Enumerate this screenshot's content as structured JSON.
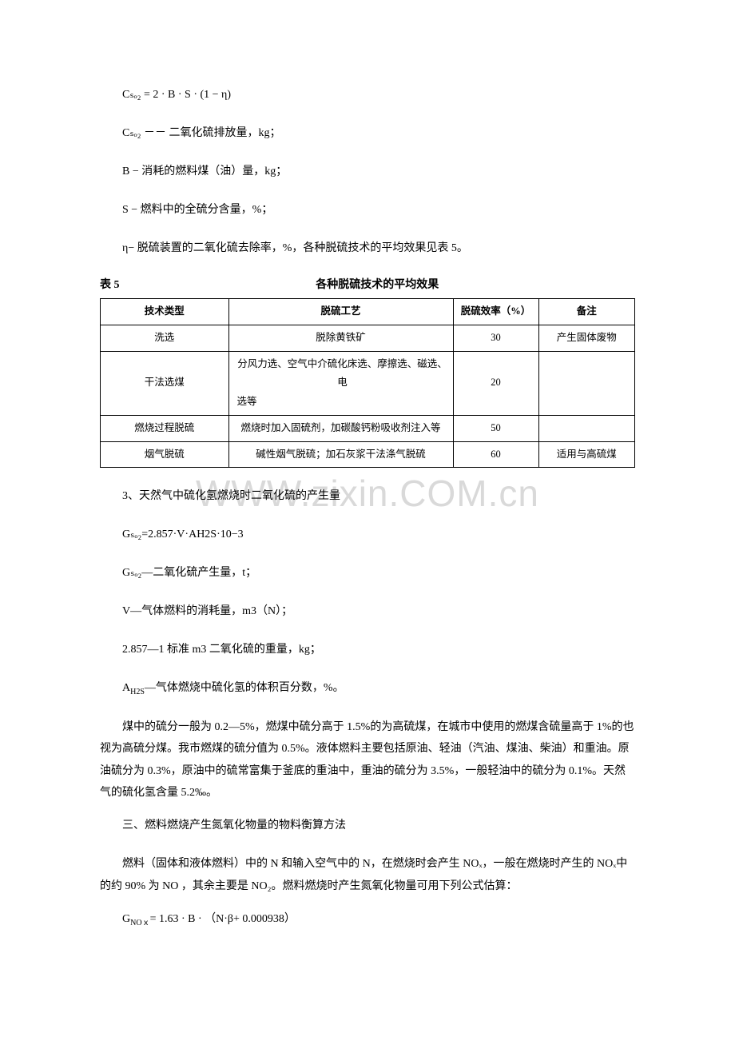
{
  "watermark": "WWW.zixin.COM.cn",
  "formula1": "Cₛₒ₂ = 2 · B · S · (1 − η)",
  "defs": {
    "cso2": "Cₛₒ₂  －－ 二氧化硫排放量，kg；",
    "b": "B − 消耗的燃料煤（油）量，kg；",
    "s": "S − 燃料中的全硫分含量，%；",
    "eta": "η− 脱硫装置的二氧化硫去除率，%，各种脱硫技术的平均效果见表 5。"
  },
  "table5": {
    "label": "表 5",
    "title": "各种脱硫技术的平均效果",
    "headers": [
      "技术类型",
      "脱硫工艺",
      "脱硫效率（%）",
      "备注"
    ],
    "rows": [
      {
        "type": "洗选",
        "process": "脱除黄铁矿",
        "eff": "30",
        "note": "产生固体废物"
      },
      {
        "type": "干法选煤",
        "process_top": "分风力选、空气中介硫化床选、摩擦选、磁选、电",
        "process_bottom": "选等",
        "eff": "20",
        "note": ""
      },
      {
        "type": "燃烧过程脱硫",
        "process": "燃烧时加入固硫剂，加碳酸钙粉吸收剂注入等",
        "eff": "50",
        "note": ""
      },
      {
        "type": "烟气脱硫",
        "process": "碱性烟气脱硫；加石灰浆干法涤气脱硫",
        "eff": "60",
        "note": "适用与高硫煤"
      }
    ]
  },
  "sec3": {
    "title": "3、天然气中硫化氢燃烧时二氧化硫的产生量",
    "eq": "Gₛₒ₂=2.857·V·AH2S·10−3",
    "g": "Gₛₒ₂—二氧化硫产生量，t；",
    "v": "V—气体燃料的消耗量，m3（N）；",
    "const": "2.857—1 标准 m3 二氧化硫的重量，kg；",
    "a": "A_H2S—气体燃烧中硫化氢的体积百分数，%。"
  },
  "coal_para": "煤中的硫分一般为 0.2—5%，燃煤中硫分高于 1.5%的为高硫煤，在城市中使用的燃煤含硫量高于 1%的也视为高硫分煤。我市燃煤的硫分值为 0.5%。液体燃料主要包括原油、轻油（汽油、煤油、柴油）和重油。原油硫分为 0.3%，原油中的硫常富集于釜底的重油中，重油的硫分为 3.5%，一般轻油中的硫分为 0.1%。天然气的硫化氢含量 5.2‰。",
  "sec_nox_title": "三、燃料燃烧产生氮氧化物量的物料衡算方法",
  "nox_para": "燃料（固体和液体燃料）中的 N 和输入空气中的 N，在燃烧时会产生 NOₓ，一般在燃烧时产生的 NOₓ中的约 90% 为 NO ，其余主要是 NO₂。燃料燃烧时产生氮氧化物量可用下列公式估算：",
  "nox_formula": "G_NOₓ= 1.63 · B · （N·β+ 0.000938）"
}
